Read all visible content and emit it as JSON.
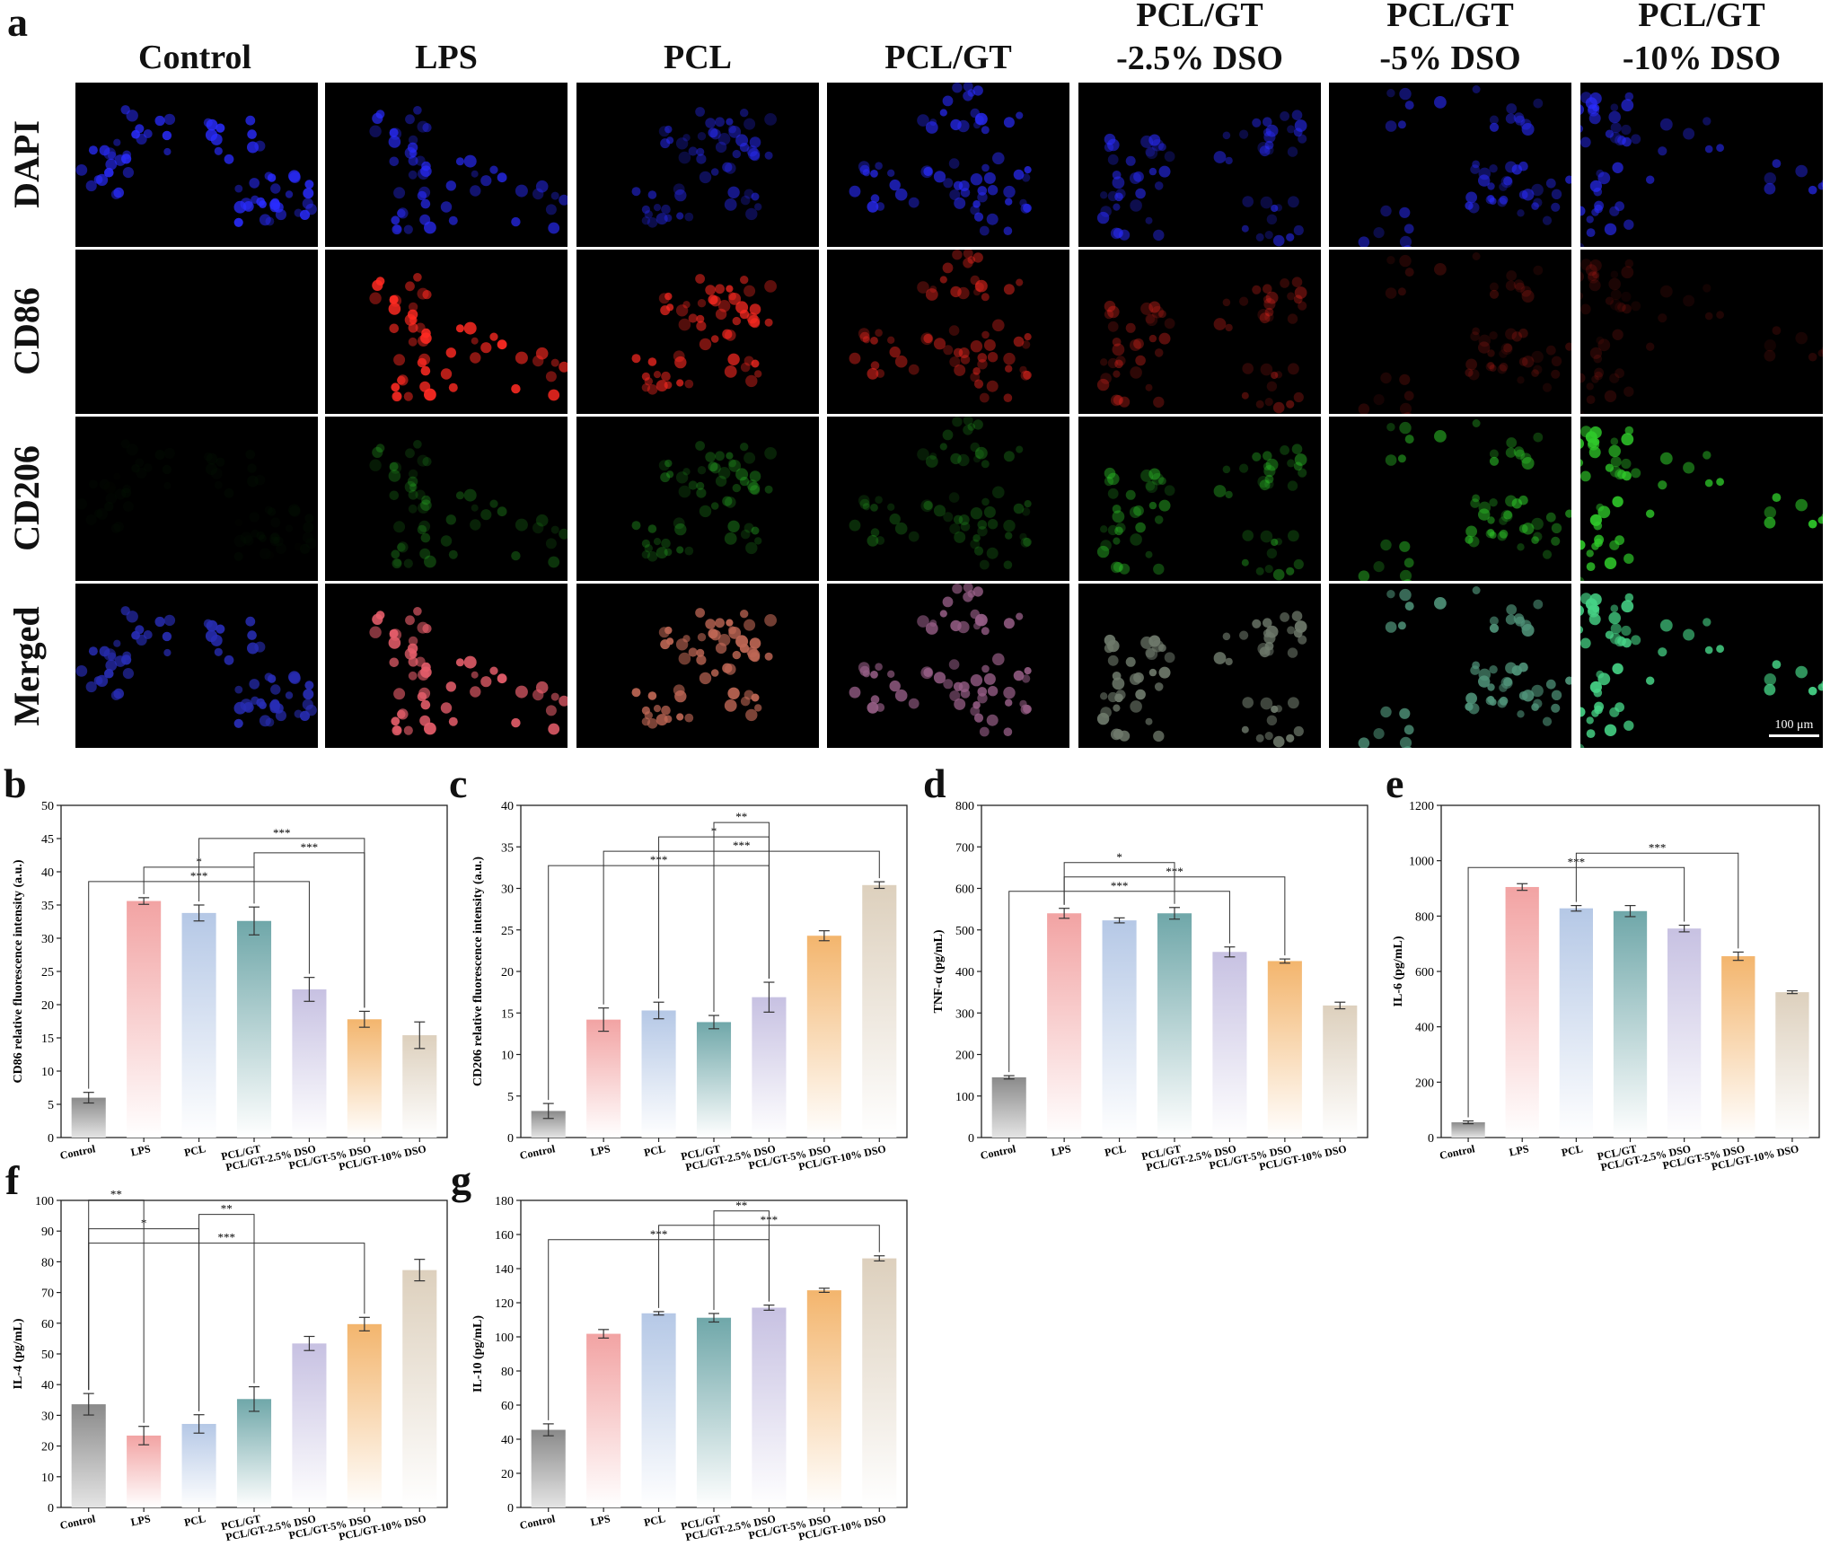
{
  "panel_letters": {
    "a": "a",
    "b": "b",
    "c": "c",
    "d": "d",
    "e": "e",
    "f": "f",
    "g": "g"
  },
  "micrographs": {
    "columns": [
      "Control",
      "LPS",
      "PCL",
      "PCL/GT",
      "PCL/GT\n-2.5% DSO",
      "PCL/GT\n-5% DSO",
      "PCL/GT\n-10% DSO"
    ],
    "rows": [
      "DAPI",
      "CD86",
      "CD206",
      "Merged"
    ],
    "scale_bar": "100 μm",
    "stain_colors": {
      "DAPI": "#2a2cff",
      "CD86": "#ff2a22",
      "CD206": "#2fc92a"
    },
    "signal_levels": {
      "DAPI": [
        0.9,
        0.75,
        0.55,
        0.8,
        0.6,
        0.65,
        0.7
      ],
      "CD86": [
        0.0,
        0.95,
        0.75,
        0.55,
        0.35,
        0.2,
        0.15
      ],
      "CD206": [
        0.03,
        0.3,
        0.35,
        0.3,
        0.45,
        0.6,
        0.95
      ]
    }
  },
  "chart_data": [
    {
      "panel": "b",
      "type": "bar",
      "categories": [
        "Control",
        "LPS",
        "PCL",
        "PCL/GT",
        "PCL/GT-2.5% DSO",
        "PCL/GT-5% DSO",
        "PCL/GT-10% DSO"
      ],
      "values": [
        6.0,
        35.6,
        33.8,
        32.6,
        22.3,
        17.8,
        15.4
      ],
      "errors": [
        0.8,
        0.5,
        1.2,
        2.1,
        1.8,
        1.2,
        2.0
      ],
      "ylabel": "CD86 relative fluorescence intensity (a.u.)",
      "ylim": [
        0,
        50
      ],
      "yticks": [
        0,
        5,
        10,
        15,
        20,
        25,
        30,
        35,
        40,
        45,
        50
      ],
      "significance": [
        {
          "from": 0,
          "to": 4,
          "label": "***"
        },
        {
          "from": 1,
          "to": 3,
          "label": "*"
        },
        {
          "from": 3,
          "to": 5,
          "label": "***"
        },
        {
          "from": 2,
          "to": 5,
          "label": "***"
        }
      ]
    },
    {
      "panel": "c",
      "type": "bar",
      "categories": [
        "Control",
        "LPS",
        "PCL",
        "PCL/GT",
        "PCL/GT-2.5% DSO",
        "PCL/GT-5% DSO",
        "PCL/GT-10% DSO"
      ],
      "values": [
        3.2,
        14.2,
        15.3,
        13.9,
        16.9,
        24.3,
        30.4
      ],
      "errors": [
        0.9,
        1.4,
        1.0,
        0.8,
        1.8,
        0.6,
        0.4
      ],
      "ylabel": "CD206 relative fluorescence intensity (a.u.)",
      "ylim": [
        0,
        40
      ],
      "yticks": [
        0,
        5,
        10,
        15,
        20,
        25,
        30,
        35,
        40
      ],
      "significance": [
        {
          "from": 0,
          "to": 4,
          "label": "***"
        },
        {
          "from": 1,
          "to": 6,
          "label": "***"
        },
        {
          "from": 2,
          "to": 4,
          "label": "*"
        },
        {
          "from": 3,
          "to": 4,
          "label": "**"
        }
      ]
    },
    {
      "panel": "d",
      "type": "bar",
      "categories": [
        "Control",
        "LPS",
        "PCL",
        "PCL/GT",
        "PCL/GT-2.5% DSO",
        "PCL/GT-5% DSO",
        "PCL/GT-10% DSO"
      ],
      "values": [
        145,
        540,
        523,
        540,
        447,
        425,
        318
      ],
      "errors": [
        4,
        12,
        6,
        14,
        12,
        5,
        8
      ],
      "ylabel": "TNF-α (pg/mL)",
      "ylim": [
        0,
        800
      ],
      "yticks": [
        0,
        100,
        200,
        300,
        400,
        500,
        600,
        700,
        800
      ],
      "significance": [
        {
          "from": 0,
          "to": 4,
          "label": "***"
        },
        {
          "from": 1,
          "to": 5,
          "label": "***"
        },
        {
          "from": 1,
          "to": 3,
          "label": "*"
        }
      ]
    },
    {
      "panel": "e",
      "type": "bar",
      "categories": [
        "Control",
        "LPS",
        "PCL",
        "PCL/GT",
        "PCL/GT-2.5% DSO",
        "PCL/GT-5% DSO",
        "PCL/GT-10% DSO"
      ],
      "values": [
        55,
        905,
        828,
        818,
        755,
        655,
        525
      ],
      "errors": [
        5,
        12,
        10,
        20,
        12,
        15,
        5
      ],
      "ylabel": "IL-6 (pg/mL)",
      "ylim": [
        0,
        1200
      ],
      "yticks": [
        0,
        200,
        400,
        600,
        800,
        1000,
        1200
      ],
      "significance": [
        {
          "from": 0,
          "to": 4,
          "label": "***"
        },
        {
          "from": 2,
          "to": 5,
          "label": "***"
        }
      ]
    },
    {
      "panel": "f",
      "type": "bar",
      "categories": [
        "Control",
        "LPS",
        "PCL",
        "PCL/GT",
        "PCL/GT-2.5% DSO",
        "PCL/GT-5% DSO",
        "PCL/GT-10% DSO"
      ],
      "values": [
        33.6,
        23.4,
        27.2,
        35.3,
        53.4,
        59.7,
        77.3
      ],
      "errors": [
        3.5,
        3.0,
        3.0,
        4.0,
        2.3,
        2.2,
        3.5
      ],
      "ylabel": "IL-4 (pg/mL)",
      "ylim": [
        0,
        100
      ],
      "yticks": [
        0,
        10,
        20,
        30,
        40,
        50,
        60,
        70,
        80,
        90,
        100
      ],
      "significance": [
        {
          "from": 0,
          "to": 5,
          "label": "***"
        },
        {
          "from": 0,
          "to": 2,
          "label": "*"
        },
        {
          "from": 2,
          "to": 3,
          "label": "**"
        },
        {
          "from": 0,
          "to": 1,
          "label": "**"
        }
      ]
    },
    {
      "panel": "g",
      "type": "bar",
      "categories": [
        "Control",
        "LPS",
        "PCL",
        "PCL/GT",
        "PCL/GT-2.5% DSO",
        "PCL/GT-5% DSO",
        "PCL/GT-10% DSO"
      ],
      "values": [
        45.5,
        101.8,
        113.8,
        111.2,
        117.1,
        127.3,
        146.0
      ],
      "errors": [
        3.5,
        2.5,
        1.0,
        2.5,
        1.5,
        1.2,
        1.5
      ],
      "ylabel": "IL-10 (pg/mL)",
      "ylim": [
        0,
        180
      ],
      "yticks": [
        0,
        20,
        40,
        60,
        80,
        100,
        120,
        140,
        160,
        180
      ],
      "significance": [
        {
          "from": 0,
          "to": 4,
          "label": "***"
        },
        {
          "from": 2,
          "to": 6,
          "label": "***"
        },
        {
          "from": 3,
          "to": 4,
          "label": "**"
        }
      ]
    }
  ],
  "bar_colors": [
    "#8a8a8a",
    "#f2a3a3",
    "#b5c8e6",
    "#6fa7a9",
    "#c7c1e2",
    "#f3b56d",
    "#ddd0bd"
  ]
}
